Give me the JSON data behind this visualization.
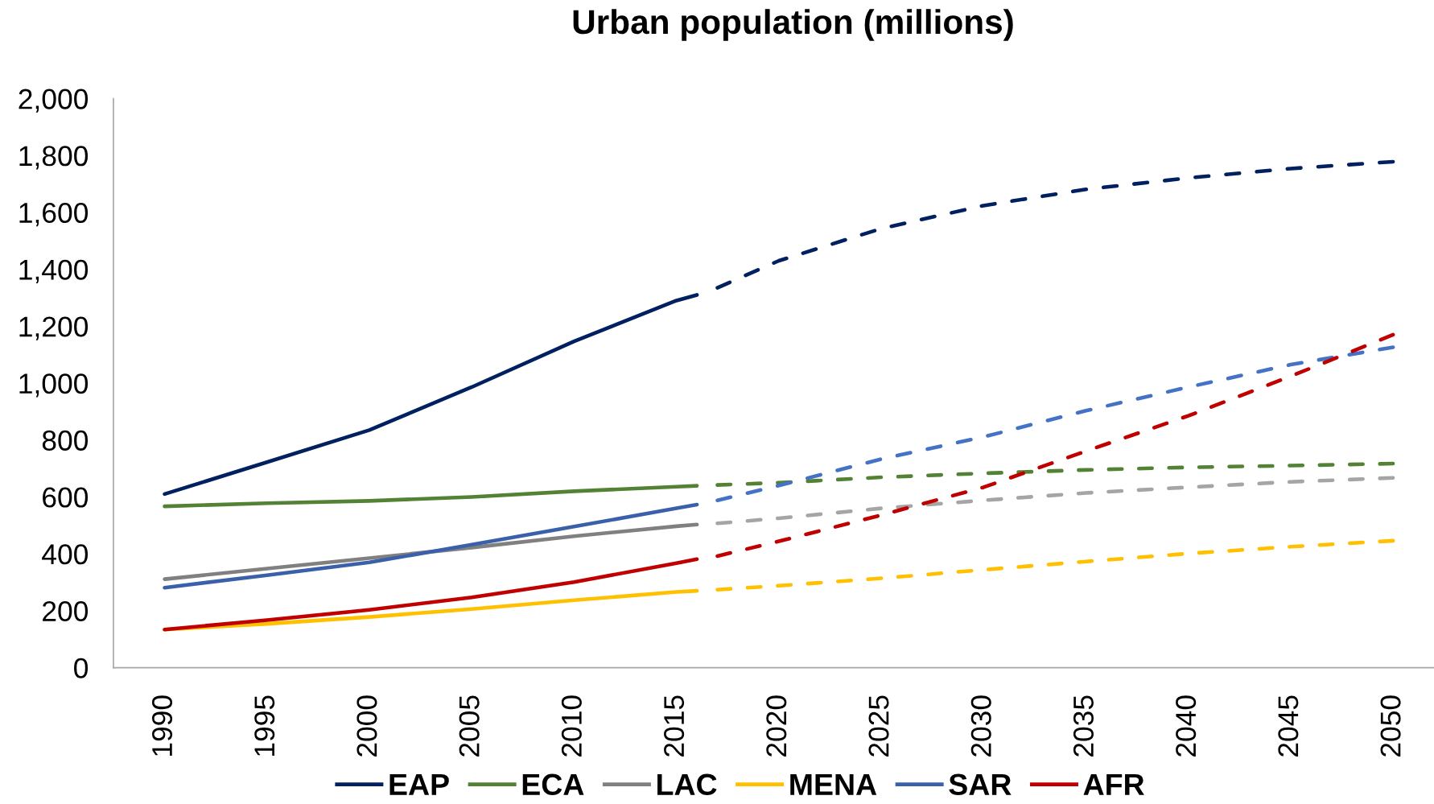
{
  "chart_data": {
    "type": "line",
    "title": "Urban population (millions)",
    "xlim": [
      1987.5,
      2052
    ],
    "xticks": [
      1990,
      1995,
      2000,
      2005,
      2010,
      2015,
      2020,
      2025,
      2030,
      2035,
      2040,
      2045,
      2050
    ],
    "ylim": [
      0,
      2000
    ],
    "yticks": [
      0,
      200,
      400,
      600,
      800,
      {
        "value": 1000,
        "label": "1,000"
      },
      {
        "value": 1200,
        "label": "1,200"
      },
      {
        "value": 1400,
        "label": "1,400"
      },
      {
        "value": 1600,
        "label": "1,600"
      },
      {
        "value": 1800,
        "label": "1,800"
      },
      {
        "value": 2000,
        "label": "2,000"
      }
    ],
    "legend": "bottom",
    "series": [
      {
        "name": "EAP",
        "color": "#002060",
        "line_style": "solid",
        "x": [
          1990,
          1995,
          2000,
          2005,
          2010,
          2015,
          2016
        ],
        "values": [
          610,
          722,
          835,
          986,
          1147,
          1290,
          1310
        ]
      },
      {
        "color": "#002060",
        "line_style": "dashed",
        "x": [
          2017,
          2020,
          2025,
          2030,
          2035,
          2040,
          2045,
          2050
        ],
        "values": [
          1335,
          1430,
          1543,
          1624,
          1681,
          1721,
          1754,
          1778
        ]
      },
      {
        "name": "ECA",
        "color": "#548235",
        "line_style": "solid",
        "x": [
          1990,
          1995,
          2000,
          2005,
          2010,
          2015,
          2016
        ],
        "values": [
          567,
          578,
          586,
          600,
          620,
          636,
          639
        ]
      },
      {
        "color": "#548235",
        "line_style": "dashed",
        "x": [
          2017,
          2020,
          2025,
          2030,
          2035,
          2040,
          2045,
          2050
        ],
        "values": [
          642,
          650,
          669,
          683,
          695,
          704,
          710,
          717
        ]
      },
      {
        "name": "LAC",
        "color": "#808080",
        "line_style": "solid",
        "x": [
          1990,
          1995,
          2000,
          2005,
          2010,
          2015,
          2016
        ],
        "values": [
          311,
          348,
          385,
          422,
          462,
          497,
          503
        ]
      },
      {
        "color": "#a5a5a5",
        "line_style": "dashed",
        "x": [
          2017,
          2020,
          2025,
          2030,
          2035,
          2040,
          2045,
          2050
        ],
        "values": [
          507,
          525,
          560,
          588,
          614,
          634,
          653,
          667
        ]
      },
      {
        "name": "MENA",
        "color": "#ffc000",
        "line_style": "solid",
        "x": [
          1990,
          1995,
          2000,
          2005,
          2010,
          2015,
          2016
        ],
        "values": [
          134,
          154,
          178,
          206,
          237,
          266,
          270
        ]
      },
      {
        "color": "#ffc000",
        "line_style": "dashed",
        "x": [
          2017,
          2020,
          2025,
          2030,
          2035,
          2040,
          2045,
          2050
        ],
        "values": [
          274,
          288,
          314,
          344,
          373,
          401,
          425,
          446
        ]
      },
      {
        "name": "SAR",
        "color": "#3a60aa",
        "line_style": "solid",
        "x": [
          1990,
          1995,
          2000,
          2005,
          2010,
          2015,
          2016
        ],
        "values": [
          281,
          325,
          370,
          432,
          496,
          560,
          573
        ]
      },
      {
        "color": "#4472c4",
        "line_style": "dashed",
        "x": [
          2017,
          2020,
          2025,
          2030,
          2035,
          2040,
          2045,
          2050
        ],
        "values": [
          588,
          640,
          733,
          811,
          903,
          986,
          1065,
          1126
        ]
      },
      {
        "name": "AFR",
        "color": "#c00000",
        "line_style": "solid",
        "x": [
          1990,
          1995,
          2000,
          2005,
          2010,
          2015,
          2016
        ],
        "values": [
          134,
          167,
          203,
          247,
          301,
          367,
          381
        ]
      },
      {
        "color": "#c00000",
        "line_style": "dashed",
        "x": [
          2017,
          2020,
          2025,
          2030,
          2035,
          2040,
          2045,
          2050
        ],
        "values": [
          392,
          444,
          536,
          634,
          761,
          885,
          1024,
          1170
        ]
      }
    ]
  }
}
